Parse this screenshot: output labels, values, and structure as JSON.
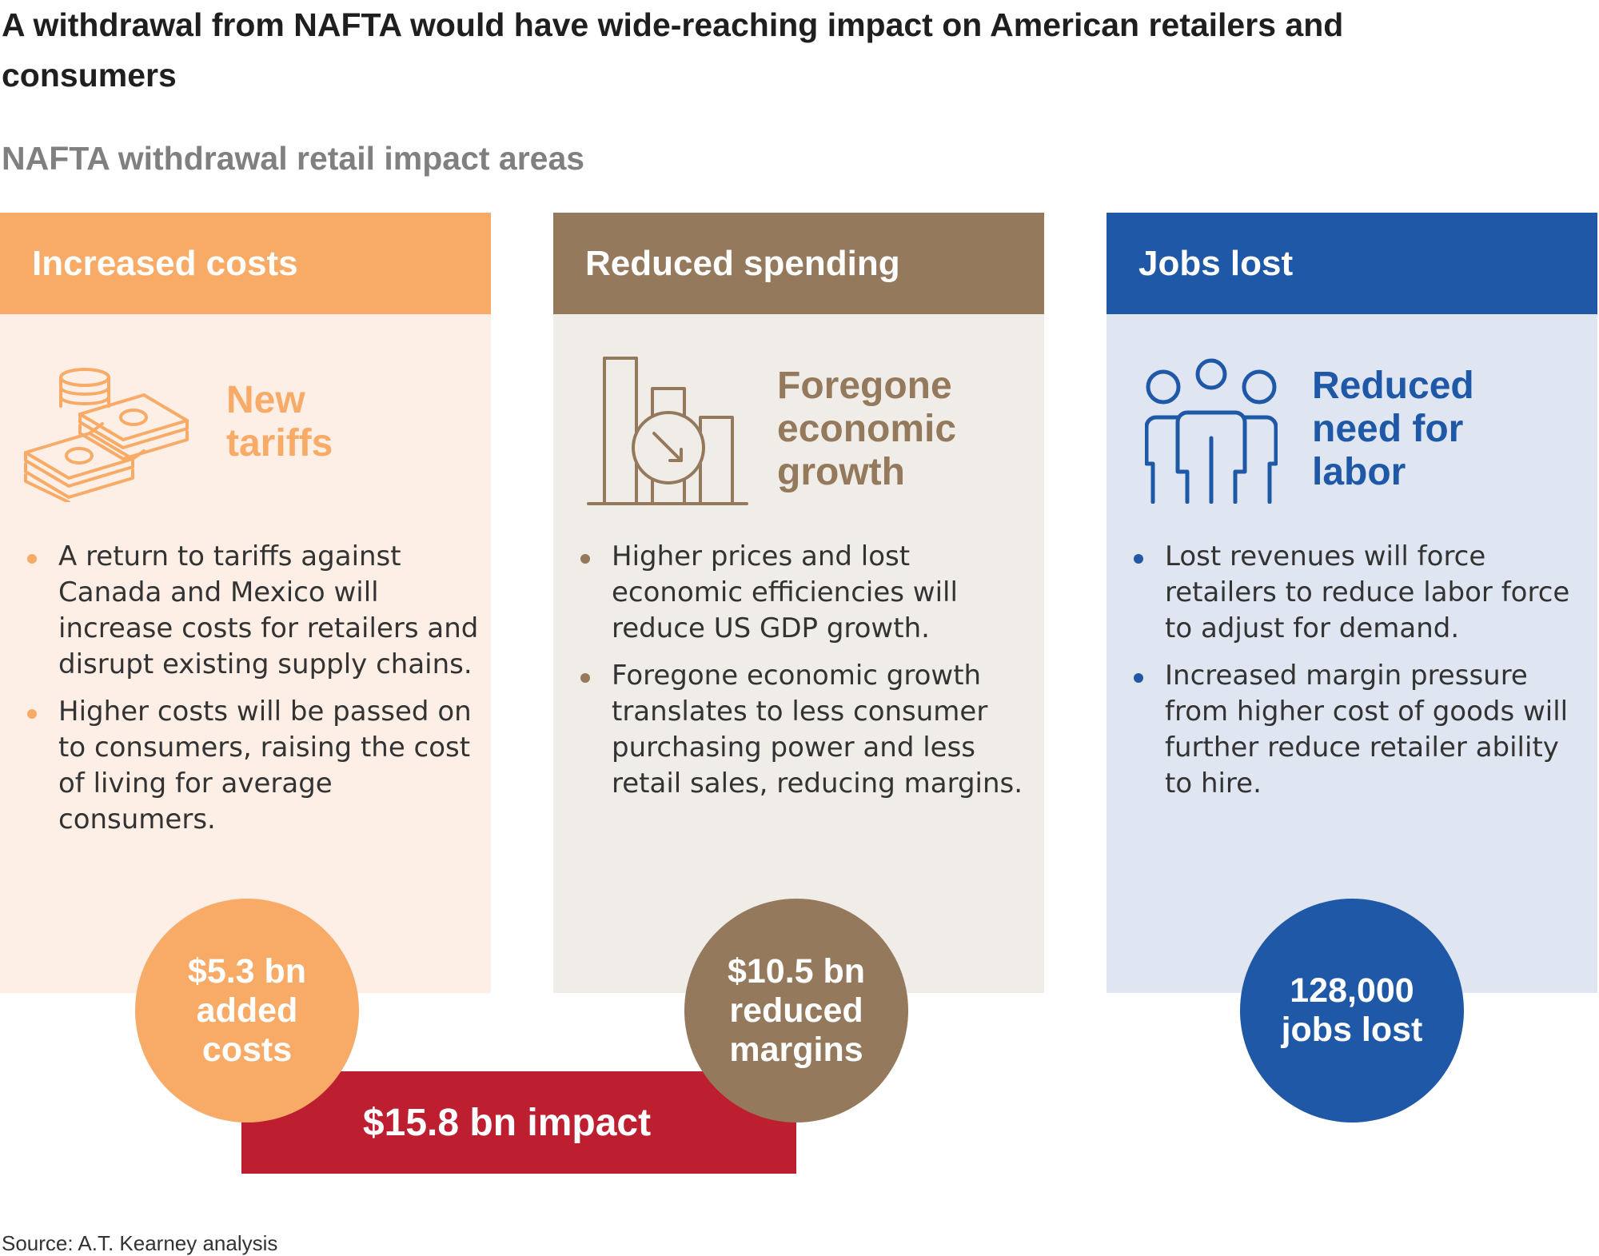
{
  "title": "A withdrawal from NAFTA would have wide-reaching impact on American retailers and consumers",
  "subtitle": "NAFTA withdrawal retail impact areas",
  "colors": {
    "orange": "#f8ab67",
    "orange_light": "#fdefe6",
    "brown": "#94795c",
    "brown_light": "#f0ece7",
    "blue": "#1f58a7",
    "blue_light": "#dfe6f1",
    "red": "#bd1f31"
  },
  "panels": [
    {
      "header": "Increased costs",
      "icon": "money-stack-icon",
      "feature": "New\ntariffs",
      "bullets": [
        "A return to tariffs against Canada and Mexico will increase costs for retailers and disrupt existing supply chains.",
        "Higher costs will be passed on to consumers, raising the cost of living for average consumers."
      ],
      "stat": "$5.3 bn\nadded\ncosts"
    },
    {
      "header": "Reduced spending",
      "icon": "declining-bar-chart-icon",
      "feature": "Foregone\neconomic\ngrowth",
      "bullets": [
        "Higher prices and lost economic efficiencies will reduce US GDP growth.",
        "Foregone economic growth translates to less consumer purchasing power and less retail sales, reducing margins."
      ],
      "stat": "$10.5 bn\nreduced\nmargins"
    },
    {
      "header": "Jobs lost",
      "icon": "people-group-icon",
      "feature": "Reduced\nneed for\nlabor",
      "bullets": [
        "Lost revenues will force retailers to reduce labor force to adjust for demand.",
        "Increased margin pressure from higher cost of goods will further reduce retailer ability to hire."
      ],
      "stat": "128,000\njobs lost"
    }
  ],
  "total_impact": "$15.8 bn impact",
  "source": "Source: A.T. Kearney analysis"
}
